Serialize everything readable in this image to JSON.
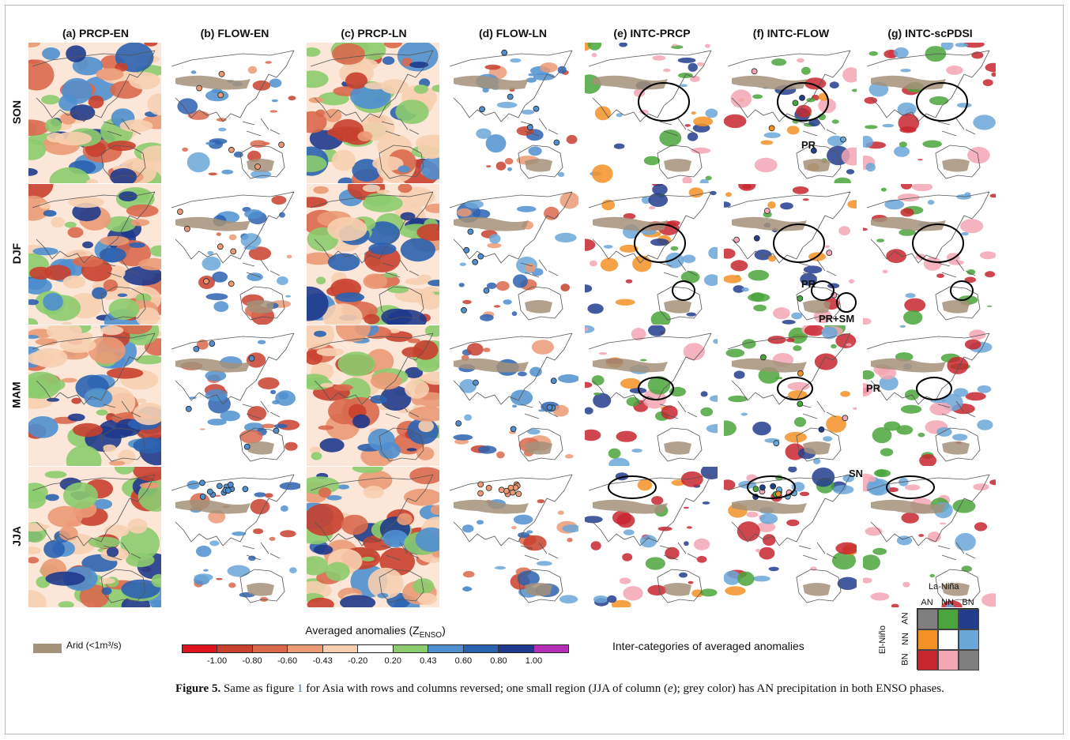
{
  "figure": {
    "columns": [
      "(a) PRCP-EN",
      "(b) FLOW-EN",
      "(c) PRCP-LN",
      "(d) FLOW-LN",
      "(e) INTC-PRCP",
      "(f) INTC-FLOW",
      "(g) INTC-scPDSI"
    ],
    "rows": [
      "SON",
      "DJF",
      "MAM",
      "JJA"
    ],
    "annotations": [
      "PR",
      "PR",
      "PR+SM",
      "PR",
      "SN"
    ],
    "arid_label": "Arid (<1m³/s)",
    "colorbar": {
      "title": "Averaged anomalies (Z",
      "title_sub": "ENSO",
      "title_end": ")",
      "ticks": [
        "-1.00",
        "-0.80",
        "-0.60",
        "-0.43",
        "-0.20",
        "0.20",
        "0.43",
        "0.60",
        "0.80",
        "1.00"
      ],
      "colors": [
        "#e0141e",
        "#c8402e",
        "#d9694c",
        "#eb9a76",
        "#f7cfb0",
        "#ffffff",
        "#8ccb6e",
        "#4f8fcf",
        "#2b62b0",
        "#1f3a8c",
        "#b42fb4"
      ]
    },
    "inter_label": "Inter-categories of averaged anomalies",
    "legend": {
      "x_title": "La-Niña",
      "y_title": "El-Niño",
      "x_labels": [
        "AN",
        "NN",
        "BN"
      ],
      "y_labels": [
        "AN",
        "NN",
        "BN"
      ],
      "colors": [
        "#7f7f7f",
        "#4aa53c",
        "#233d8d",
        "#f39124",
        "#ffffff",
        "#6aa7d8",
        "#c8262f",
        "#f3a6b4",
        "#7f7f7f"
      ]
    },
    "colors": {
      "arid": "#a39179",
      "land_outline": "#555555"
    }
  },
  "caption": {
    "label": "Figure 5.",
    "text_a": " Same as figure ",
    "ref": "1",
    "text_b": " for Asia with rows and columns reversed; one small region (JJA of column (",
    "italic": "e",
    "text_c": "); grey color) has AN precipitation in both ENSO phases."
  }
}
